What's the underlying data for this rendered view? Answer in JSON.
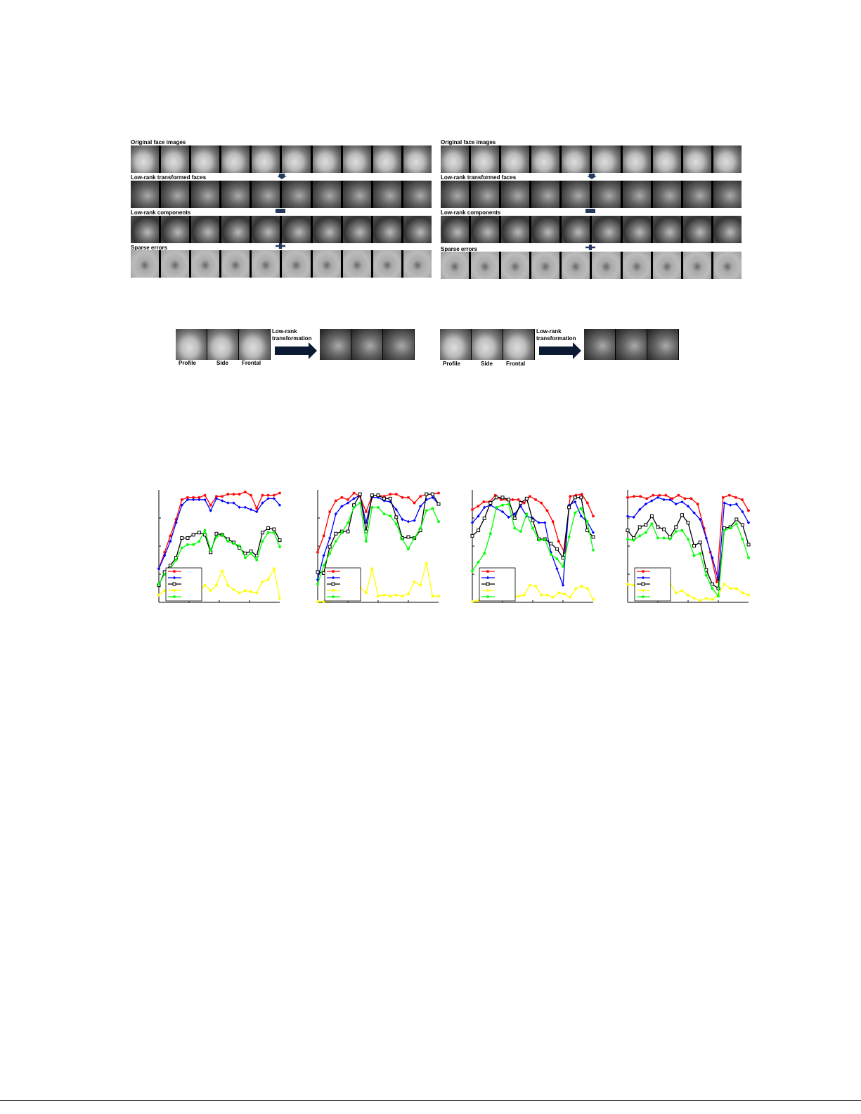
{
  "figure1": {
    "left": {
      "rows": [
        "Original face images",
        "Low-rank transformed faces",
        "Low-rank components",
        "Sparse errors"
      ]
    },
    "right": {
      "rows": [
        "Original face images",
        "Low-rank transformed faces",
        "Low-rank components",
        "Sparse errors"
      ]
    },
    "operators": [
      "arrow-down",
      "equals",
      "plus"
    ]
  },
  "figure2": {
    "left": {
      "pose_labels": [
        "Profile",
        "Side",
        "Frontal"
      ],
      "arrow_label": "Low-rank transformation"
    },
    "right": {
      "pose_labels": [
        "Profile",
        "Side",
        "Frontal"
      ],
      "arrow_label": "Low-rank transformation"
    }
  },
  "chart_data": [
    {
      "type": "line",
      "ylim": [
        0,
        1
      ],
      "grid": false,
      "legend": "bottom-left",
      "series": [
        {
          "color": "#ff0000",
          "marker": "star",
          "values": [
            0.3,
            0.45,
            0.6,
            0.75,
            0.93,
            0.95,
            0.95,
            0.95,
            0.97,
            0.88,
            0.96,
            0.96,
            0.98,
            0.98,
            0.98,
            1.0,
            0.97,
            0.85,
            0.97,
            0.97,
            0.97,
            0.99
          ]
        },
        {
          "color": "#0000ff",
          "marker": "diamond",
          "values": [
            0.3,
            0.42,
            0.55,
            0.72,
            0.88,
            0.93,
            0.93,
            0.93,
            0.93,
            0.83,
            0.94,
            0.92,
            0.9,
            0.9,
            0.86,
            0.86,
            0.84,
            0.82,
            0.9,
            0.94,
            0.94,
            0.88
          ]
        },
        {
          "color": "#000000",
          "marker": "square",
          "values": [
            0.15,
            0.27,
            0.33,
            0.4,
            0.58,
            0.58,
            0.61,
            0.63,
            0.61,
            0.45,
            0.62,
            0.61,
            0.57,
            0.54,
            0.49,
            0.44,
            0.46,
            0.42,
            0.63,
            0.67,
            0.66,
            0.56
          ]
        },
        {
          "color": "#ffff00",
          "marker": "star",
          "values": [
            0.06,
            0.1,
            0.08,
            0.1,
            0.1,
            0.12,
            0.12,
            0.1,
            0.15,
            0.1,
            0.15,
            0.28,
            0.15,
            0.11,
            0.08,
            0.1,
            0.09,
            0.08,
            0.18,
            0.2,
            0.3,
            0.03
          ]
        },
        {
          "color": "#00ff00",
          "marker": "star",
          "values": [
            0.16,
            0.25,
            0.3,
            0.38,
            0.49,
            0.52,
            0.52,
            0.55,
            0.65,
            0.47,
            0.59,
            0.61,
            0.55,
            0.53,
            0.51,
            0.4,
            0.44,
            0.38,
            0.55,
            0.63,
            0.63,
            0.5
          ]
        }
      ]
    },
    {
      "type": "line",
      "ylim": [
        0,
        1
      ],
      "grid": false,
      "legend": "bottom-left",
      "series": [
        {
          "color": "#ff0000",
          "marker": "star",
          "values": [
            0.45,
            0.6,
            0.82,
            0.92,
            0.95,
            0.93,
            0.99,
            0.96,
            0.82,
            0.97,
            0.97,
            0.96,
            0.98,
            0.98,
            0.95,
            0.95,
            0.9,
            0.96,
            0.98,
            0.98,
            0.99
          ]
        },
        {
          "color": "#0000ff",
          "marker": "diamond",
          "values": [
            0.2,
            0.42,
            0.58,
            0.8,
            0.87,
            0.9,
            0.94,
            0.97,
            0.72,
            0.95,
            0.95,
            0.92,
            0.91,
            0.84,
            0.75,
            0.73,
            0.74,
            0.87,
            0.93,
            0.95,
            0.89
          ]
        },
        {
          "color": "#000000",
          "marker": "square",
          "values": [
            0.27,
            0.26,
            0.5,
            0.62,
            0.64,
            0.64,
            0.88,
            0.98,
            0.64,
            0.97,
            0.97,
            0.94,
            0.94,
            0.77,
            0.58,
            0.59,
            0.58,
            0.65,
            0.98,
            0.98,
            0.89
          ]
        },
        {
          "color": "#ffff00",
          "marker": "star",
          "values": [
            0.0,
            0.0,
            0.01,
            0.08,
            0.1,
            0.15,
            0.1,
            0.13,
            0.08,
            0.3,
            0.05,
            0.06,
            0.05,
            0.06,
            0.05,
            0.07,
            0.18,
            0.15,
            0.35,
            0.05,
            0.05
          ]
        },
        {
          "color": "#00ff00",
          "marker": "star",
          "values": [
            0.16,
            0.33,
            0.44,
            0.55,
            0.63,
            0.72,
            0.86,
            0.9,
            0.55,
            0.86,
            0.86,
            0.8,
            0.78,
            0.71,
            0.57,
            0.48,
            0.58,
            0.67,
            0.83,
            0.85,
            0.73
          ]
        }
      ]
    },
    {
      "type": "line",
      "ylim": [
        0,
        1
      ],
      "grid": false,
      "legend": "bottom-left",
      "series": [
        {
          "color": "#ff0000",
          "marker": "star",
          "values": [
            0.84,
            0.87,
            0.91,
            0.91,
            0.97,
            0.93,
            0.93,
            0.93,
            0.93,
            0.9,
            0.96,
            0.93,
            0.9,
            0.83,
            0.73,
            0.55,
            0.45,
            0.96,
            0.97,
            0.98,
            0.9,
            0.78
          ]
        },
        {
          "color": "#0000ff",
          "marker": "diamond",
          "values": [
            0.72,
            0.78,
            0.86,
            0.88,
            0.85,
            0.82,
            0.77,
            0.8,
            0.87,
            0.78,
            0.76,
            0.72,
            0.72,
            0.45,
            0.3,
            0.15,
            0.88,
            0.91,
            0.78,
            0.73,
            0.63
          ]
        },
        {
          "color": "#000000",
          "marker": "square",
          "values": [
            0.6,
            0.65,
            0.76,
            0.9,
            0.95,
            0.95,
            0.93,
            0.76,
            0.9,
            0.94,
            0.74,
            0.57,
            0.57,
            0.53,
            0.48,
            0.4,
            0.86,
            0.95,
            0.95,
            0.65,
            0.59
          ]
        },
        {
          "color": "#ffff00",
          "marker": "star",
          "values": [
            0.0,
            0.01,
            0.02,
            0.04,
            0.05,
            0.06,
            0.05,
            0.04,
            0.05,
            0.06,
            0.15,
            0.14,
            0.06,
            0.06,
            0.04,
            0.08,
            0.07,
            0.04,
            0.12,
            0.14,
            0.12,
            0.02
          ]
        },
        {
          "color": "#00ff00",
          "marker": "star",
          "values": [
            0.28,
            0.36,
            0.44,
            0.62,
            0.86,
            0.88,
            0.89,
            0.67,
            0.64,
            0.8,
            0.67,
            0.56,
            0.57,
            0.43,
            0.39,
            0.32,
            0.59,
            0.81,
            0.85,
            0.73,
            0.47
          ]
        }
      ]
    },
    {
      "type": "line",
      "ylim": [
        0,
        1
      ],
      "grid": false,
      "legend": "bottom-left",
      "series": [
        {
          "color": "#ff0000",
          "marker": "star",
          "values": [
            0.95,
            0.96,
            0.96,
            0.94,
            0.97,
            0.97,
            0.97,
            0.94,
            0.97,
            0.94,
            0.94,
            0.89,
            0.67,
            0.45,
            0.18,
            0.95,
            0.97,
            0.95,
            0.93,
            0.83
          ]
        },
        {
          "color": "#0000ff",
          "marker": "diamond",
          "values": [
            0.78,
            0.77,
            0.84,
            0.89,
            0.92,
            0.95,
            0.93,
            0.93,
            0.89,
            0.91,
            0.87,
            0.81,
            0.75,
            0.58,
            0.4,
            0.2,
            0.9,
            0.88,
            0.89,
            0.82,
            0.72
          ]
        },
        {
          "color": "#000000",
          "marker": "square",
          "values": [
            0.65,
            0.58,
            0.68,
            0.7,
            0.78,
            0.68,
            0.66,
            0.59,
            0.68,
            0.79,
            0.72,
            0.51,
            0.54,
            0.29,
            0.16,
            0.12,
            0.67,
            0.68,
            0.75,
            0.7,
            0.52
          ]
        },
        {
          "color": "#ffff00",
          "marker": "star",
          "values": [
            0.16,
            0.15,
            0.12,
            0.1,
            0.12,
            0.04,
            0.15,
            0.17,
            0.08,
            0.1,
            0.06,
            0.03,
            0.01,
            0.03,
            0.02,
            0.06,
            0.16,
            0.12,
            0.12,
            0.08,
            0.06
          ]
        },
        {
          "color": "#00ff00",
          "marker": "star",
          "values": [
            0.57,
            0.56,
            0.6,
            0.63,
            0.71,
            0.58,
            0.58,
            0.57,
            0.64,
            0.65,
            0.57,
            0.42,
            0.44,
            0.24,
            0.12,
            0.05,
            0.65,
            0.67,
            0.71,
            0.57,
            0.4
          ]
        }
      ]
    }
  ]
}
